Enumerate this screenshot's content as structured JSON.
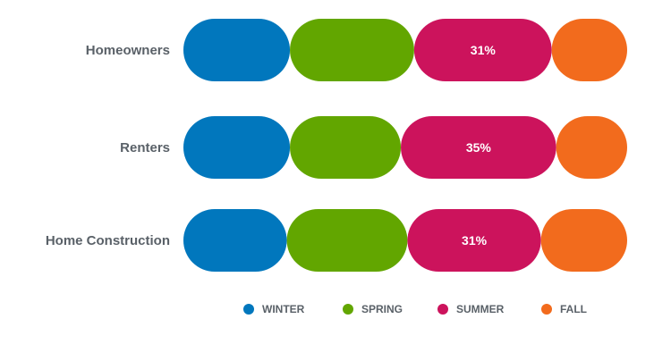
{
  "chart_data": {
    "type": "bar",
    "stacked": true,
    "orientation": "horizontal",
    "categories": [
      "Homeowners",
      "Renters",
      "Home Construction"
    ],
    "series": [
      {
        "name": "WINTER",
        "color": "#0177bd",
        "values": [
          24,
          24,
          24
        ]
      },
      {
        "name": "SPRING",
        "color": "#62a600",
        "values": [
          28,
          25,
          28
        ]
      },
      {
        "name": "SUMMER",
        "color": "#cc135c",
        "values": [
          31,
          35,
          31
        ]
      },
      {
        "name": "FALL",
        "color": "#f26b1d",
        "values": [
          17,
          16,
          20
        ]
      }
    ],
    "data_labels": [
      {
        "category_index": 0,
        "series_index": 2,
        "text": "31%"
      },
      {
        "category_index": 1,
        "series_index": 2,
        "text": "35%"
      },
      {
        "category_index": 2,
        "series_index": 2,
        "text": "31%"
      }
    ],
    "legend_position": "bottom",
    "grid": false
  }
}
